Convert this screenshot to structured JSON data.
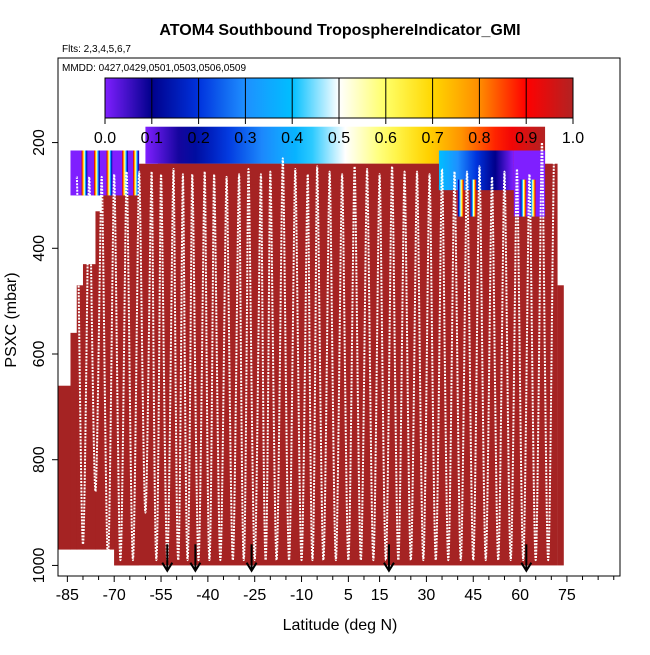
{
  "chart_data": {
    "type": "heatmap",
    "title": "ATOM4 Southbound TroposphereIndicator_GMI",
    "subtitle_flights": "Flts: 2,3,4,5,6,7",
    "subtitle_dates": "MMDD: 0427,0429,0501,0503,0506,0509",
    "xlabel": "Latitude (deg N)",
    "ylabel": "PSXC (mbar)",
    "xlim": [
      -88,
      92
    ],
    "ylim": [
      1020,
      40
    ],
    "x_ticks": [
      -85,
      -70,
      -55,
      -40,
      -25,
      -10,
      5,
      15,
      30,
      45,
      60,
      75
    ],
    "x_tick_labels": [
      "-85",
      "-70",
      "-55",
      "-40",
      "-25",
      "-10",
      "5",
      "15",
      "30",
      "45",
      "60",
      "75"
    ],
    "y_ticks": [
      200,
      400,
      600,
      800,
      1000
    ],
    "y_tick_labels": [
      "200",
      "400",
      "600",
      "800",
      "1000"
    ],
    "colorbar": {
      "range": [
        0,
        1
      ],
      "ticks": [
        "0.0",
        "0.1",
        "0.2",
        "0.3",
        "0.4",
        "0.5",
        "0.6",
        "0.7",
        "0.8",
        "0.9",
        "1.0"
      ],
      "colors": [
        "#7f1fff",
        "#00008b",
        "#0033dd",
        "#1e90ff",
        "#00bfff",
        "#ffffff",
        "#ffff66",
        "#ffd700",
        "#ff8c00",
        "#ff0000",
        "#b22222"
      ]
    },
    "fill_color": "#a52323",
    "profiles": [
      -82,
      -78,
      -74,
      -70,
      -66,
      -62,
      -58,
      -55,
      -51,
      -48,
      -45,
      -41,
      -38,
      -34,
      -30,
      -27,
      -23,
      -20,
      -16,
      -12,
      -8,
      -5,
      -1,
      3,
      7,
      11,
      15,
      19,
      23,
      27,
      31,
      35,
      39,
      43,
      47,
      51,
      55,
      59,
      63,
      67,
      71
    ],
    "arrows_latitude": [
      -53,
      -44,
      -26,
      18,
      62
    ]
  }
}
